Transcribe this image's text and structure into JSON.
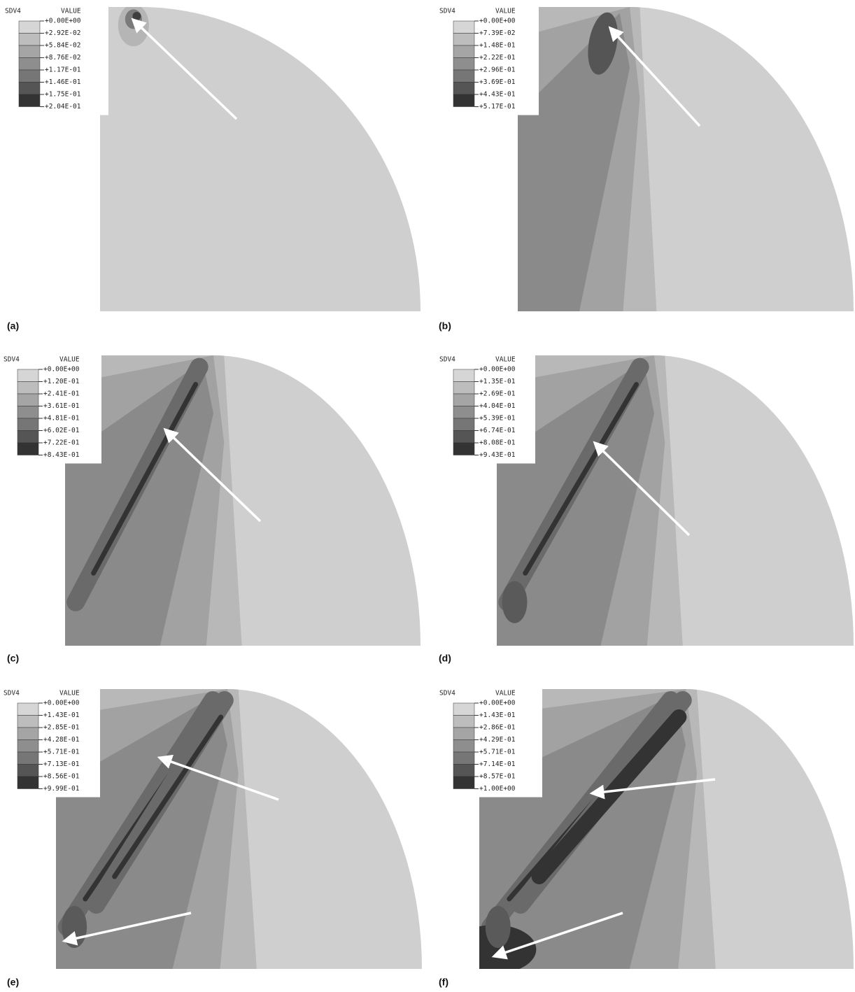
{
  "panels": [
    {
      "label": "(a)",
      "legend": {
        "variable": "SDV4",
        "header": "VALUE",
        "values": [
          "+0.00E+00",
          "+2.92E-02",
          "+5.84E-02",
          "+8.76E-02",
          "+1.17E-01",
          "+1.46E-01",
          "+1.75E-01",
          "+2.04E-01"
        ]
      }
    },
    {
      "label": "(b)",
      "legend": {
        "variable": "SDV4",
        "header": "VALUE",
        "values": [
          "+0.00E+00",
          "+7.39E-02",
          "+1.48E-01",
          "+2.22E-01",
          "+2.96E-01",
          "+3.69E-01",
          "+4.43E-01",
          "+5.17E-01"
        ]
      }
    },
    {
      "label": "(c)",
      "legend": {
        "variable": "SDV4",
        "header": "VALUE",
        "values": [
          "+0.00E+00",
          "+1.20E-01",
          "+2.41E-01",
          "+3.61E-01",
          "+4.81E-01",
          "+6.02E-01",
          "+7.22E-01",
          "+8.43E-01"
        ]
      }
    },
    {
      "label": "(d)",
      "legend": {
        "variable": "SDV4",
        "header": "VALUE",
        "values": [
          "+0.00E+00",
          "+1.35E-01",
          "+2.69E-01",
          "+4.04E-01",
          "+5.39E-01",
          "+6.74E-01",
          "+8.08E-01",
          "+9.43E-01"
        ]
      }
    },
    {
      "label": "(e)",
      "legend": {
        "variable": "SDV4",
        "header": "VALUE",
        "values": [
          "+0.00E+00",
          "+1.43E-01",
          "+2.85E-01",
          "+4.28E-01",
          "+5.71E-01",
          "+7.13E-01",
          "+8.56E-01",
          "+9.99E-01"
        ]
      }
    },
    {
      "label": "(f)",
      "legend": {
        "variable": "SDV4",
        "header": "VALUE",
        "values": [
          "+0.00E+00",
          "+1.43E-01",
          "+2.86E-01",
          "+4.29E-01",
          "+5.71E-01",
          "+7.14E-01",
          "+8.57E-01",
          "+1.00E+00"
        ]
      }
    }
  ]
}
